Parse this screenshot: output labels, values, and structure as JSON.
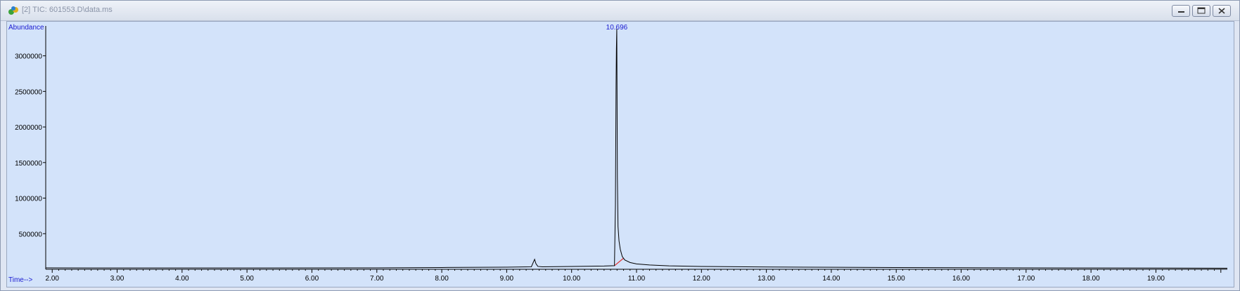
{
  "window": {
    "title": "[2] TIC: 601553.D\\data.ms",
    "icon": "chromatogram-app-icon",
    "controls": [
      "minimize-icon",
      "restore-icon",
      "close-icon"
    ]
  },
  "chart_data": {
    "type": "line",
    "ylabel": "Abundance",
    "xlabel": "Time-->",
    "xlim": [
      1.9,
      20.1
    ],
    "ylim": [
      0,
      3420000
    ],
    "x_ticks": [
      2,
      3,
      4,
      5,
      6,
      7,
      8,
      9,
      10,
      11,
      12,
      13,
      14,
      15,
      16,
      17,
      18,
      19
    ],
    "x_tick_labels": [
      "2.00",
      "3.00",
      "4.00",
      "5.00",
      "6.00",
      "7.00",
      "8.00",
      "9.00",
      "10.00",
      "11.00",
      "12.00",
      "13.00",
      "14.00",
      "15.00",
      "16.00",
      "17.00",
      "18.00",
      "19.00"
    ],
    "y_ticks": [
      500000,
      1000000,
      1500000,
      2000000,
      2500000,
      3000000
    ],
    "y_tick_labels": [
      "500000",
      "1000000",
      "1500000",
      "2000000",
      "2500000",
      "3000000"
    ],
    "series": [
      {
        "line_color": "#000000",
        "x": [
          1.9,
          3.0,
          5.0,
          7.0,
          8.0,
          9.0,
          9.38,
          9.43,
          9.45,
          9.48,
          9.55,
          10.0,
          10.5,
          10.66,
          10.675,
          10.685,
          10.69,
          10.696,
          10.705,
          10.715,
          10.73,
          10.75,
          10.78,
          10.82,
          10.9,
          11.0,
          11.2,
          11.5,
          12.0,
          13.0,
          14.0,
          15.0,
          16.0,
          17.0,
          18.0,
          19.0,
          20.1
        ],
        "y": [
          20000,
          18000,
          18000,
          20000,
          25000,
          30000,
          35000,
          140000,
          80000,
          40000,
          35000,
          40000,
          45000,
          50000,
          900000,
          2600000,
          3100000,
          3380000,
          1300000,
          600000,
          400000,
          280000,
          180000,
          130000,
          95000,
          75000,
          60000,
          48000,
          40000,
          32000,
          28000,
          25000,
          22000,
          20000,
          18000,
          17000,
          15000
        ]
      }
    ],
    "peaks": [
      {
        "label": "10.696",
        "x": 10.696,
        "y": 3380000,
        "baseline_start": 10.66,
        "baseline_end": 10.8,
        "baseline_color": "#e03030"
      }
    ],
    "grid": false,
    "background_color": "#d3e3fa",
    "axis_title_color": "#1a1ad0"
  }
}
